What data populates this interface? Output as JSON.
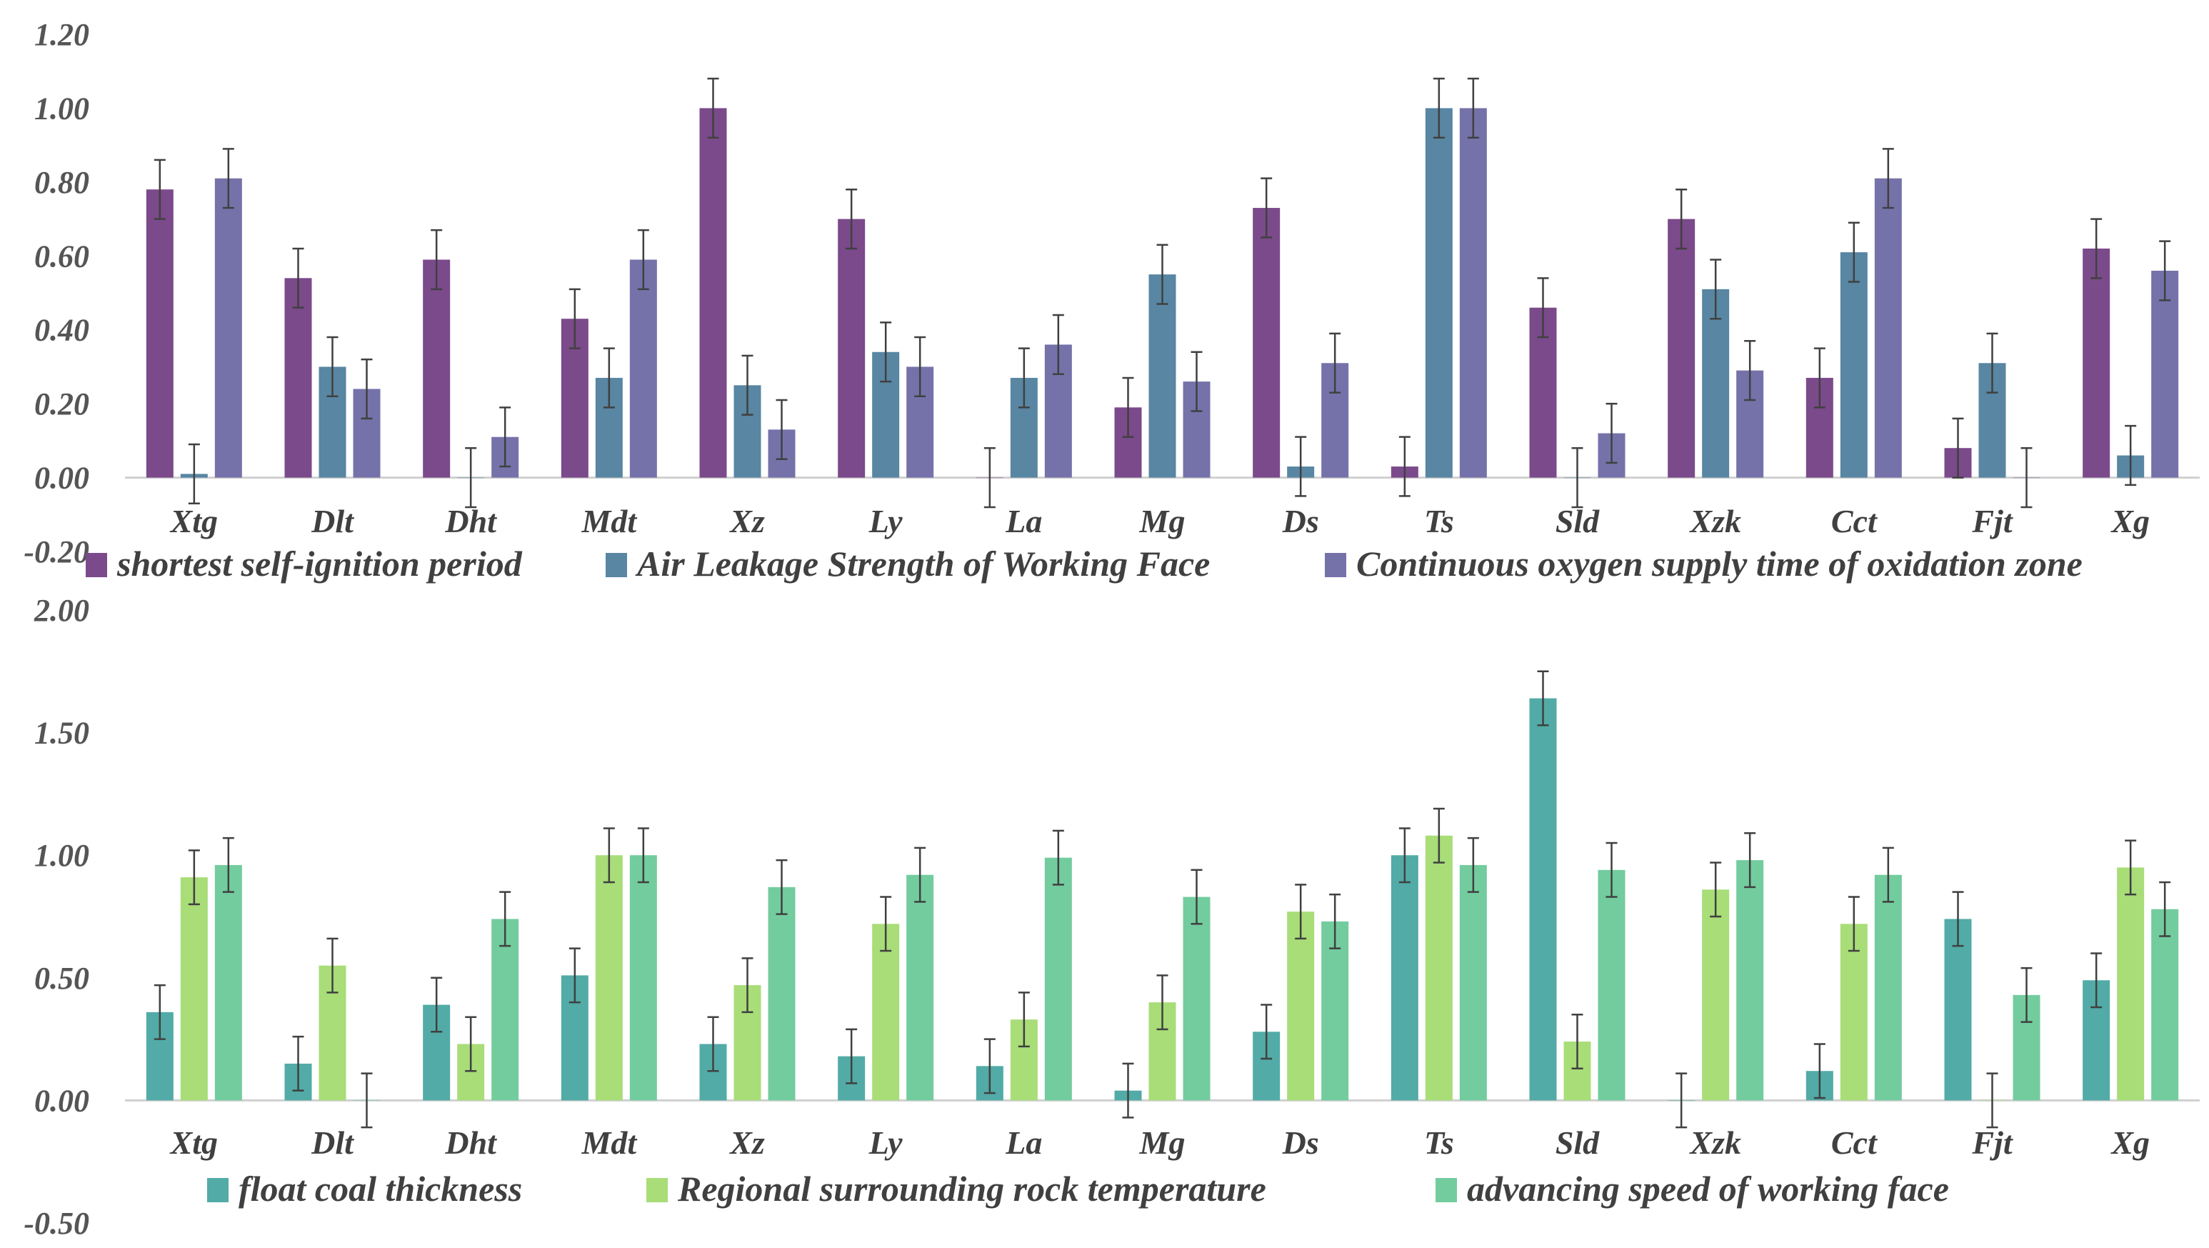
{
  "chart_data": [
    {
      "type": "bar",
      "categories": [
        "Xtg",
        "Dlt",
        "Dht",
        "Mdt",
        "Xz",
        "Ly",
        "La",
        "Mg",
        "Ds",
        "Ts",
        "Sld",
        "Xzk",
        "Cct",
        "Fjt",
        "Xg"
      ],
      "ylim": [
        -0.2,
        1.2
      ],
      "yticks": [
        "1.20",
        "1.00",
        "0.80",
        "0.60",
        "0.40",
        "0.20",
        "0.00",
        "-0.20"
      ],
      "ytick_values": [
        1.2,
        1.0,
        0.8,
        0.6,
        0.4,
        0.2,
        0.0,
        -0.2
      ],
      "error_bar": 0.08,
      "legend_position": "bottom",
      "series": [
        {
          "name": "shortest self-ignition period",
          "color": "#7b4a8b",
          "values": [
            0.78,
            0.54,
            0.59,
            0.43,
            1.0,
            0.7,
            0.0,
            0.19,
            0.73,
            0.03,
            0.46,
            0.7,
            0.27,
            0.08,
            0.62
          ]
        },
        {
          "name": "Air Leakage Strength of Working Face",
          "color": "#5886a3",
          "values": [
            0.01,
            0.3,
            0.0,
            0.27,
            0.25,
            0.34,
            0.27,
            0.55,
            0.03,
            1.0,
            0.0,
            0.51,
            0.61,
            0.31,
            0.06
          ]
        },
        {
          "name": "Continuous oxygen supply time of oxidation zone",
          "color": "#7572aa",
          "values": [
            0.81,
            0.24,
            0.11,
            0.59,
            0.13,
            0.3,
            0.36,
            0.26,
            0.31,
            1.0,
            0.12,
            0.29,
            0.81,
            0.0,
            0.56
          ]
        }
      ]
    },
    {
      "type": "bar",
      "categories": [
        "Xtg",
        "Dlt",
        "Dht",
        "Mdt",
        "Xz",
        "Ly",
        "La",
        "Mg",
        "Ds",
        "Ts",
        "Sld",
        "Xzk",
        "Cct",
        "Fjt",
        "Xg"
      ],
      "ylim": [
        -0.5,
        2.0
      ],
      "yticks": [
        "2.00",
        "1.50",
        "1.00",
        "0.50",
        "0.00",
        "-0.50"
      ],
      "ytick_values": [
        2.0,
        1.5,
        1.0,
        0.5,
        0.0,
        -0.5
      ],
      "error_bar": 0.11,
      "legend_position": "bottom",
      "series": [
        {
          "name": "float coal thickness",
          "color": "#52aba6",
          "values": [
            0.36,
            0.15,
            0.39,
            0.51,
            0.23,
            0.18,
            0.14,
            0.04,
            0.28,
            1.0,
            1.64,
            0.0,
            0.12,
            0.74,
            0.49
          ]
        },
        {
          "name": "Regional surrounding rock temperature",
          "color": "#a8dd78",
          "values": [
            0.91,
            0.55,
            0.23,
            1.0,
            0.47,
            0.72,
            0.33,
            0.4,
            0.77,
            1.08,
            0.24,
            0.86,
            0.72,
            0.0,
            0.95
          ]
        },
        {
          "name": "advancing speed of working face",
          "color": "#73cc9e",
          "values": [
            0.96,
            0.0,
            0.74,
            1.0,
            0.87,
            0.92,
            0.99,
            0.83,
            0.73,
            0.96,
            0.94,
            0.98,
            0.92,
            0.43,
            0.78
          ]
        }
      ]
    }
  ]
}
